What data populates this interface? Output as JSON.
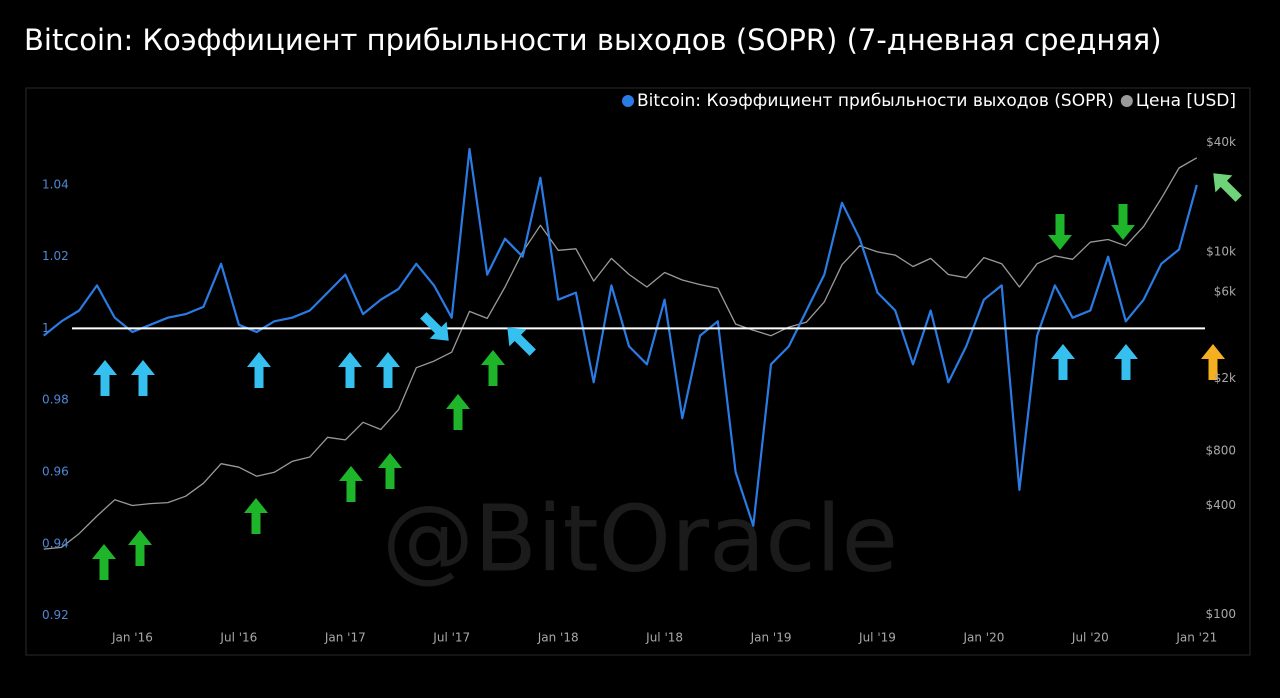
{
  "chart_data": {
    "type": "line",
    "title": "Bitcoin: Коэффициент прибыльности выходов (SOPR) (7-дневная средняя)",
    "watermark": "@BitOracle",
    "x": [
      "2015-08",
      "2015-09",
      "2015-10",
      "2015-11",
      "2015-12",
      "2016-01",
      "2016-02",
      "2016-03",
      "2016-04",
      "2016-05",
      "2016-06",
      "2016-07",
      "2016-08",
      "2016-09",
      "2016-10",
      "2016-11",
      "2016-12",
      "2017-01",
      "2017-02",
      "2017-03",
      "2017-04",
      "2017-05",
      "2017-06",
      "2017-07",
      "2017-08",
      "2017-09",
      "2017-10",
      "2017-11",
      "2017-12",
      "2018-01",
      "2018-02",
      "2018-03",
      "2018-04",
      "2018-05",
      "2018-06",
      "2018-07",
      "2018-08",
      "2018-09",
      "2018-10",
      "2018-11",
      "2018-12",
      "2019-01",
      "2019-02",
      "2019-03",
      "2019-04",
      "2019-05",
      "2019-06",
      "2019-07",
      "2019-08",
      "2019-09",
      "2019-10",
      "2019-11",
      "2019-12",
      "2020-01",
      "2020-02",
      "2020-03",
      "2020-04",
      "2020-05",
      "2020-06",
      "2020-07",
      "2020-08",
      "2020-09",
      "2020-10",
      "2020-11",
      "2020-12",
      "2021-01"
    ],
    "series": [
      {
        "name": "Цена [USD]",
        "color": "#9a9a9a",
        "axis": "y2",
        "values": [
          230,
          235,
          280,
          350,
          430,
          400,
          410,
          415,
          450,
          530,
          680,
          650,
          580,
          610,
          700,
          740,
          950,
          920,
          1150,
          1050,
          1350,
          2300,
          2500,
          2800,
          4700,
          4300,
          6400,
          10000,
          14000,
          10200,
          10400,
          6900,
          9200,
          7500,
          6400,
          7700,
          7000,
          6600,
          6300,
          4000,
          3700,
          3450,
          3850,
          4100,
          5300,
          8500,
          10800,
          10000,
          9600,
          8300,
          9200,
          7500,
          7200,
          9300,
          8600,
          6400,
          8600,
          9500,
          9100,
          11300,
          11700,
          10800,
          13800,
          19700,
          29000,
          33000
        ]
      },
      {
        "name": "Bitcoin: Коэффициент прибыльности выходов (SOPR)",
        "color": "#2a7be4",
        "values": [
          0.998,
          1.002,
          1.005,
          1.012,
          1.003,
          0.999,
          1.001,
          1.003,
          1.004,
          1.006,
          1.018,
          1.001,
          0.999,
          1.002,
          1.003,
          1.005,
          1.01,
          1.015,
          1.004,
          1.008,
          1.011,
          1.018,
          1.012,
          1.003,
          1.05,
          1.015,
          1.025,
          1.02,
          1.042,
          1.008,
          1.01,
          0.985,
          1.012,
          0.995,
          0.99,
          1.008,
          0.975,
          0.998,
          1.002,
          0.96,
          0.945,
          0.99,
          0.995,
          1.005,
          1.015,
          1.035,
          1.025,
          1.01,
          1.005,
          0.99,
          1.005,
          0.985,
          0.995,
          1.008,
          1.012,
          0.955,
          0.998,
          1.012,
          1.003,
          1.005,
          1.02,
          1.002,
          1.008,
          1.018,
          1.022,
          1.04
        ]
      }
    ],
    "hline": 1,
    "xlim": [
      "2015-07",
      "2021-04"
    ],
    "xticks": [
      {
        "value": "2016-01",
        "label": "Jan '16"
      },
      {
        "value": "2016-07",
        "label": "Jul '16"
      },
      {
        "value": "2017-01",
        "label": "Jan '17"
      },
      {
        "value": "2017-07",
        "label": "Jul '17"
      },
      {
        "value": "2018-01",
        "label": "Jan '18"
      },
      {
        "value": "2018-07",
        "label": "Jul '18"
      },
      {
        "value": "2019-01",
        "label": "Jan '19"
      },
      {
        "value": "2019-07",
        "label": "Jul '19"
      },
      {
        "value": "2020-01",
        "label": "Jan '20"
      },
      {
        "value": "2020-07",
        "label": "Jul '20"
      },
      {
        "value": "2021-01",
        "label": "Jan '21"
      }
    ],
    "ylim": [
      0.909,
      1.067
    ],
    "yticks": [
      0.92,
      0.94,
      0.96,
      0.98,
      1,
      1.02,
      1.04
    ],
    "y2lim": [
      60,
      80000
    ],
    "y2log": true,
    "y2ticks": [
      {
        "value": 100,
        "label": "$100"
      },
      {
        "value": 400,
        "label": "$400"
      },
      {
        "value": 800,
        "label": "$800"
      },
      {
        "value": 2000,
        "label": "$2k"
      },
      {
        "value": 6000,
        "label": "$6k"
      },
      {
        "value": 10000,
        "label": "$10k"
      },
      {
        "value": 40000,
        "label": "$40k"
      }
    ],
    "legend": "top-right"
  }
}
